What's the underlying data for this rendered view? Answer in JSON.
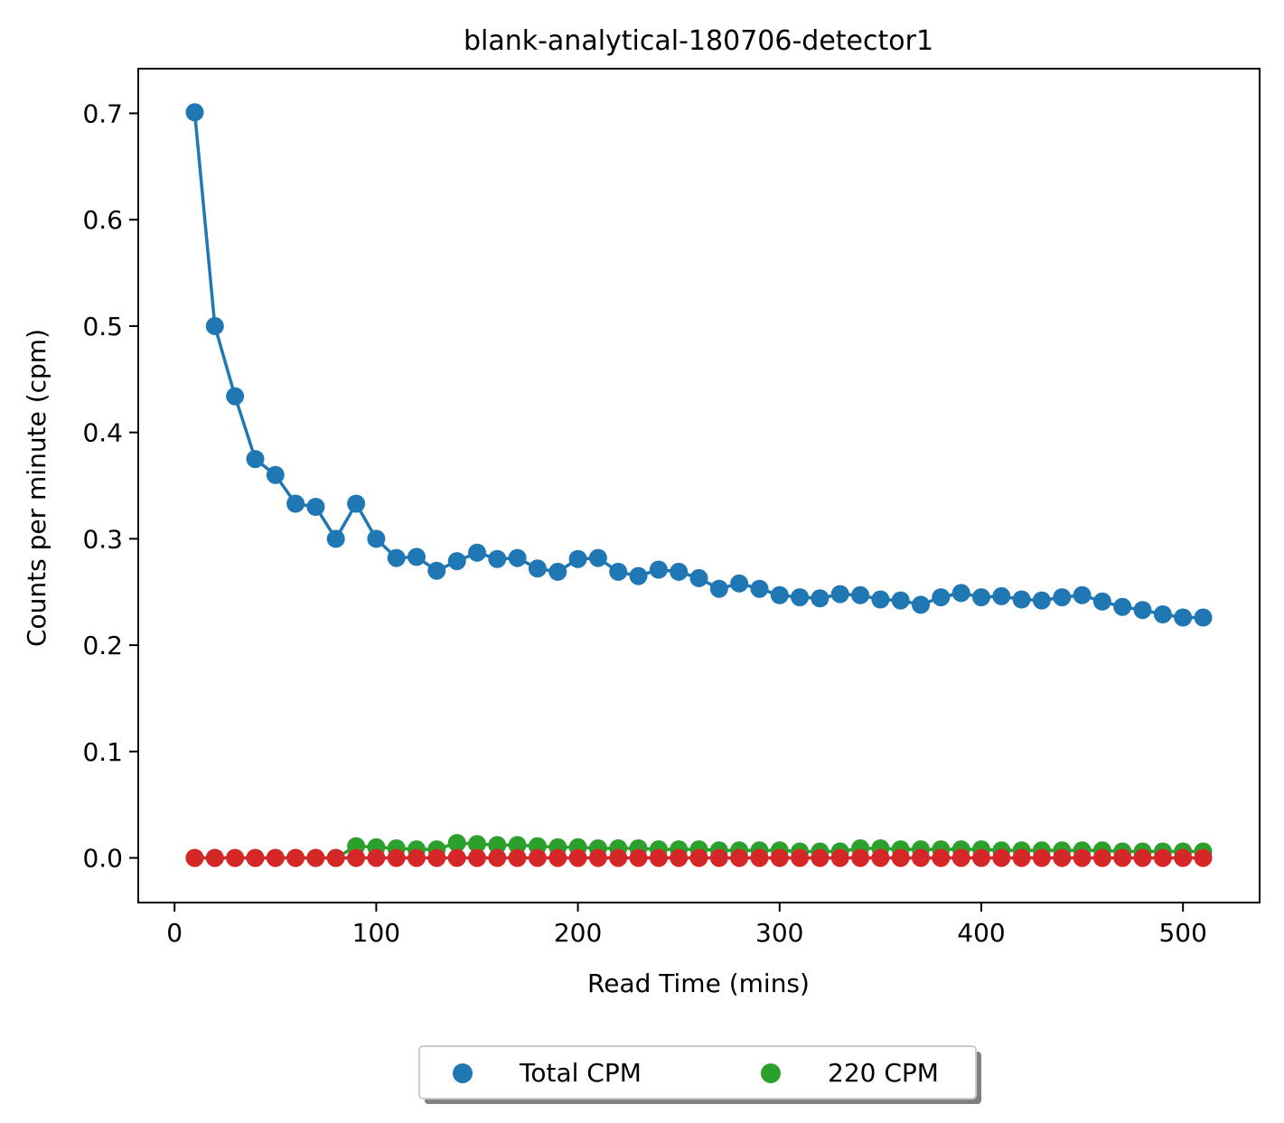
{
  "chart_data": {
    "type": "scatter",
    "title": "blank-analytical-180706-detector1",
    "xlabel": "Read Time (mins)",
    "ylabel": "Counts per minute (cpm)",
    "xlim": [
      -18,
      538
    ],
    "ylim": [
      -0.042,
      0.742
    ],
    "xticks": [
      0,
      100,
      200,
      300,
      400,
      500
    ],
    "xtick_labels": [
      "0",
      "100",
      "200",
      "300",
      "400",
      "500"
    ],
    "yticks": [
      0.0,
      0.1,
      0.2,
      0.3,
      0.4,
      0.5,
      0.6,
      0.7
    ],
    "ytick_labels": [
      "0.0",
      "0.1",
      "0.2",
      "0.3",
      "0.4",
      "0.5",
      "0.6",
      "0.7"
    ],
    "grid": false,
    "legend_position": "bottom-center, below axes",
    "x": [
      10,
      20,
      30,
      40,
      50,
      60,
      70,
      80,
      90,
      100,
      110,
      120,
      130,
      140,
      150,
      160,
      170,
      180,
      190,
      200,
      210,
      220,
      230,
      240,
      250,
      260,
      270,
      280,
      290,
      300,
      310,
      320,
      330,
      340,
      350,
      360,
      370,
      380,
      390,
      400,
      410,
      420,
      430,
      440,
      450,
      460,
      470,
      480,
      490,
      500,
      510
    ],
    "series": [
      {
        "name": "Total CPM",
        "color": "#1f77b4",
        "in_legend": true,
        "values": [
          0.701,
          0.5,
          0.434,
          0.375,
          0.36,
          0.333,
          0.33,
          0.3,
          0.333,
          0.3,
          0.282,
          0.283,
          0.27,
          0.279,
          0.287,
          0.281,
          0.282,
          0.272,
          0.269,
          0.281,
          0.282,
          0.269,
          0.265,
          0.271,
          0.269,
          0.263,
          0.253,
          0.258,
          0.253,
          0.247,
          0.245,
          0.244,
          0.248,
          0.247,
          0.243,
          0.242,
          0.238,
          0.245,
          0.249,
          0.245,
          0.246,
          0.243,
          0.242,
          0.245,
          0.247,
          0.241,
          0.236,
          0.233,
          0.229,
          0.226,
          0.226
        ]
      },
      {
        "name": "220 CPM",
        "color": "#2ca02c",
        "in_legend": true,
        "values": [
          0,
          0,
          0,
          0,
          0,
          0,
          0,
          0,
          0.011,
          0.01,
          0.009,
          0.008,
          0.008,
          0.014,
          0.013,
          0.012,
          0.012,
          0.011,
          0.01,
          0.01,
          0.009,
          0.009,
          0.009,
          0.008,
          0.008,
          0.008,
          0.007,
          0.007,
          0.007,
          0.007,
          0.006,
          0.006,
          0.006,
          0.009,
          0.009,
          0.008,
          0.008,
          0.008,
          0.008,
          0.008,
          0.007,
          0.007,
          0.007,
          0.007,
          0.007,
          0.007,
          0.006,
          0.006,
          0.006,
          0.006,
          0.006
        ]
      },
      {
        "color": "#d62728",
        "in_legend": false,
        "values": [
          0,
          0,
          0,
          0,
          0,
          0,
          0,
          0,
          0,
          0,
          0,
          0,
          0,
          0,
          0,
          0,
          0,
          0,
          0,
          0,
          0,
          0,
          0,
          0,
          0,
          0,
          0,
          0,
          0,
          0,
          0,
          0,
          0,
          0,
          0,
          0,
          0,
          0,
          0,
          0,
          0,
          0,
          0,
          0,
          0,
          0,
          0,
          0,
          0,
          0,
          0
        ]
      }
    ]
  }
}
